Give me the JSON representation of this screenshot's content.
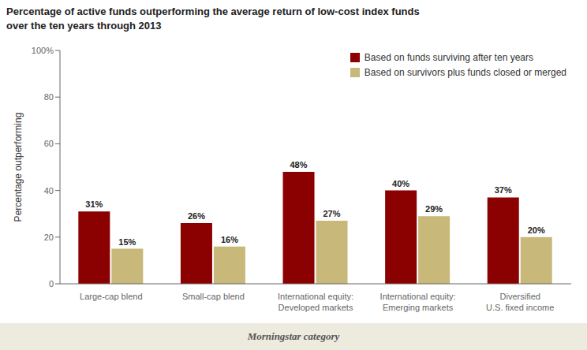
{
  "chart_data": {
    "type": "bar",
    "title": "Percentage of active funds outperforming the average return of low-cost index funds",
    "subtitle": "over the ten years through 2013",
    "categories": [
      "Large-cap blend",
      "Small-cap blend",
      "International equity:\nDeveloped markets",
      "International equity:\nEmerging markets",
      "Diversified\nU.S. fixed income"
    ],
    "series": [
      {
        "name": "Based on funds surviving after ten years",
        "color": "#8B0000",
        "values": [
          31,
          26,
          48,
          40,
          37
        ],
        "value_labels": [
          "31%",
          "26%",
          "48%",
          "40%",
          "37%"
        ]
      },
      {
        "name": "Based on survivors plus funds closed or merged",
        "color": "#C8B87A",
        "values": [
          15,
          16,
          27,
          29,
          20
        ],
        "value_labels": [
          "15%",
          "16%",
          "27%",
          "29%",
          "20%"
        ]
      }
    ],
    "xlabel": "Morningstar category",
    "ylabel": "Percentage outperforming",
    "ylim": [
      0,
      100
    ],
    "yticks": [
      0,
      20,
      40,
      60,
      80,
      {
        "value": 100,
        "label": "100%"
      }
    ],
    "grid": false,
    "legend": "upper right",
    "data_labels": true
  }
}
